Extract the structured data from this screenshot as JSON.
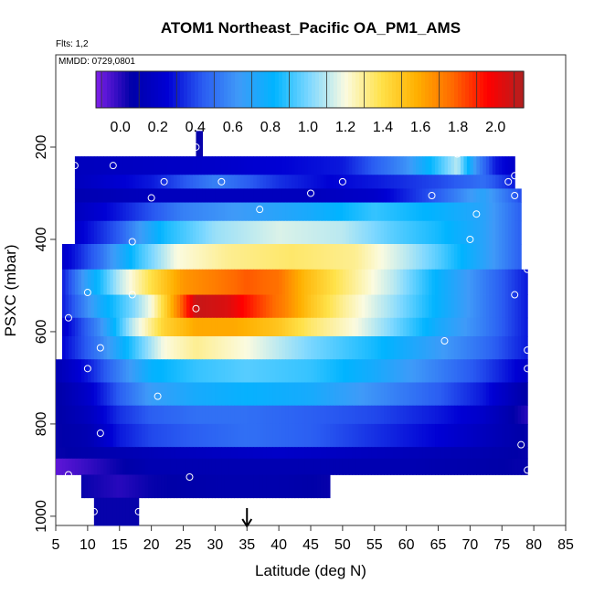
{
  "chart_data": {
    "type": "heatmap",
    "title": "ATOM1 Northeast_Pacific OA_PM1_AMS",
    "flights_label": "Flts: 1,2",
    "date_label": "MMDD: 0729,0801",
    "xlabel": "Latitude (deg N)",
    "ylabel": "PSXC (mbar)",
    "xlim": [
      5,
      85
    ],
    "ylim": [
      1020,
      0
    ],
    "x_ticks": [
      "5",
      "10",
      "15",
      "20",
      "25",
      "30",
      "35",
      "40",
      "45",
      "50",
      "55",
      "60",
      "65",
      "70",
      "75",
      "80",
      "85"
    ],
    "y_ticks": [
      "200",
      "400",
      "600",
      "800",
      "1000"
    ],
    "y_tick_values": [
      200,
      400,
      600,
      800,
      1000
    ],
    "colorbar": {
      "range": [
        -0.13,
        2.15
      ],
      "ticks": [
        "0.0",
        "0.2",
        "0.4",
        "0.6",
        "0.8",
        "1.0",
        "1.2",
        "1.4",
        "1.6",
        "1.8",
        "2.0"
      ],
      "tick_values": [
        0.0,
        0.2,
        0.4,
        0.6,
        0.8,
        1.0,
        1.2,
        1.4,
        1.6,
        1.8,
        2.0
      ],
      "colors": [
        "#7f1fe8",
        "#0000a8",
        "#0000d4",
        "#2a5cf2",
        "#3f9af8",
        "#00b4ff",
        "#7fd8ff",
        "#fbfbe0",
        "#ffe24a",
        "#ffb000",
        "#ff6a00",
        "#ff0000",
        "#b22020"
      ]
    },
    "arrow_latitude": 35,
    "layers": [
      {
        "p_top": 165,
        "p_bot": 220,
        "lat_start": 27,
        "lat_end": 28,
        "profile": [
          [
            27,
            0.05
          ],
          [
            28,
            0.05
          ]
        ]
      },
      {
        "p_top": 220,
        "p_bot": 260,
        "lat_start": 8,
        "lat_end": 77,
        "profile": [
          [
            8,
            0.15
          ],
          [
            30,
            0.2
          ],
          [
            50,
            0.3
          ],
          [
            60,
            0.6
          ],
          [
            65,
            0.9
          ],
          [
            68,
            1.1
          ],
          [
            71,
            0.6
          ],
          [
            74,
            0.3
          ],
          [
            77,
            0.2
          ]
        ]
      },
      {
        "p_top": 260,
        "p_bot": 290,
        "lat_start": 8,
        "lat_end": 77,
        "profile": [
          [
            8,
            0.15
          ],
          [
            20,
            0.3
          ],
          [
            30,
            0.55
          ],
          [
            40,
            0.35
          ],
          [
            48,
            0.25
          ],
          [
            55,
            0.3
          ],
          [
            65,
            0.4
          ],
          [
            72,
            0.5
          ],
          [
            77,
            0.3
          ]
        ]
      },
      {
        "p_top": 290,
        "p_bot": 320,
        "lat_start": 8,
        "lat_end": 78,
        "profile": [
          [
            8,
            0.1
          ],
          [
            20,
            0.15
          ],
          [
            30,
            0.15
          ],
          [
            45,
            0.15
          ],
          [
            55,
            0.2
          ],
          [
            65,
            0.45
          ],
          [
            72,
            0.7
          ],
          [
            78,
            0.4
          ]
        ]
      },
      {
        "p_top": 320,
        "p_bot": 360,
        "lat_start": 8,
        "lat_end": 78,
        "profile": [
          [
            8,
            0.15
          ],
          [
            15,
            0.3
          ],
          [
            25,
            0.55
          ],
          [
            35,
            0.65
          ],
          [
            45,
            0.75
          ],
          [
            55,
            0.9
          ],
          [
            65,
            0.8
          ],
          [
            72,
            0.7
          ],
          [
            78,
            0.45
          ]
        ]
      },
      {
        "p_top": 360,
        "p_bot": 410,
        "lat_start": 8,
        "lat_end": 78,
        "profile": [
          [
            8,
            0.2
          ],
          [
            15,
            0.45
          ],
          [
            22,
            0.85
          ],
          [
            30,
            1.05
          ],
          [
            40,
            1.15
          ],
          [
            50,
            1.1
          ],
          [
            58,
            0.95
          ],
          [
            65,
            0.85
          ],
          [
            72,
            0.7
          ],
          [
            78,
            0.45
          ]
        ]
      },
      {
        "p_top": 410,
        "p_bot": 465,
        "lat_start": 6,
        "lat_end": 78,
        "profile": [
          [
            6,
            0.2
          ],
          [
            12,
            0.5
          ],
          [
            18,
            0.9
          ],
          [
            24,
            1.2
          ],
          [
            32,
            1.3
          ],
          [
            42,
            1.35
          ],
          [
            52,
            1.3
          ],
          [
            60,
            1.1
          ],
          [
            65,
            0.95
          ],
          [
            72,
            0.7
          ],
          [
            78,
            0.45
          ]
        ]
      },
      {
        "p_top": 465,
        "p_bot": 520,
        "lat_start": 6,
        "lat_end": 79,
        "profile": [
          [
            6,
            0.3
          ],
          [
            10,
            0.7
          ],
          [
            15,
            1.1
          ],
          [
            20,
            1.4
          ],
          [
            25,
            1.65
          ],
          [
            30,
            1.72
          ],
          [
            35,
            1.8
          ],
          [
            40,
            1.75
          ],
          [
            44,
            1.55
          ],
          [
            50,
            1.35
          ],
          [
            58,
            1.1
          ],
          [
            65,
            0.8
          ],
          [
            72,
            0.55
          ],
          [
            79,
            0.3
          ]
        ]
      },
      {
        "p_top": 520,
        "p_bot": 570,
        "lat_start": 6,
        "lat_end": 79,
        "profile": [
          [
            6,
            0.3
          ],
          [
            12,
            0.75
          ],
          [
            17,
            1.0
          ],
          [
            20,
            1.2
          ],
          [
            23,
            1.55
          ],
          [
            27,
            2.1
          ],
          [
            32,
            2.05
          ],
          [
            37,
            1.85
          ],
          [
            41,
            1.7
          ],
          [
            45,
            1.5
          ],
          [
            50,
            1.3
          ],
          [
            58,
            1.05
          ],
          [
            65,
            0.8
          ],
          [
            72,
            0.55
          ],
          [
            79,
            0.3
          ]
        ]
      },
      {
        "p_top": 570,
        "p_bot": 610,
        "lat_start": 6,
        "lat_end": 79,
        "profile": [
          [
            6,
            0.2
          ],
          [
            12,
            0.6
          ],
          [
            17,
            1.1
          ],
          [
            22,
            1.45
          ],
          [
            27,
            1.6
          ],
          [
            33,
            1.6
          ],
          [
            40,
            1.5
          ],
          [
            45,
            1.35
          ],
          [
            52,
            1.2
          ],
          [
            58,
            1.0
          ],
          [
            65,
            0.75
          ],
          [
            72,
            0.55
          ],
          [
            79,
            0.3
          ]
        ]
      },
      {
        "p_top": 610,
        "p_bot": 660,
        "lat_start": 6,
        "lat_end": 79,
        "profile": [
          [
            6,
            0.25
          ],
          [
            12,
            0.55
          ],
          [
            18,
            0.95
          ],
          [
            22,
            1.2
          ],
          [
            27,
            1.3
          ],
          [
            35,
            1.2
          ],
          [
            45,
            1.0
          ],
          [
            55,
            0.85
          ],
          [
            65,
            0.65
          ],
          [
            72,
            0.5
          ],
          [
            79,
            0.3
          ]
        ]
      },
      {
        "p_top": 660,
        "p_bot": 710,
        "lat_start": 5,
        "lat_end": 79,
        "profile": [
          [
            5,
            0.1
          ],
          [
            10,
            0.3
          ],
          [
            15,
            0.55
          ],
          [
            20,
            0.8
          ],
          [
            27,
            0.9
          ],
          [
            35,
            0.95
          ],
          [
            45,
            0.9
          ],
          [
            55,
            0.75
          ],
          [
            65,
            0.55
          ],
          [
            72,
            0.4
          ],
          [
            79,
            0.2
          ]
        ]
      },
      {
        "p_top": 710,
        "p_bot": 760,
        "lat_start": 5,
        "lat_end": 79,
        "profile": [
          [
            5,
            0.05
          ],
          [
            10,
            0.2
          ],
          [
            15,
            0.45
          ],
          [
            20,
            0.65
          ],
          [
            27,
            0.75
          ],
          [
            35,
            0.8
          ],
          [
            45,
            0.75
          ],
          [
            55,
            0.6
          ],
          [
            65,
            0.45
          ],
          [
            72,
            0.3
          ],
          [
            79,
            0.05
          ]
        ]
      },
      {
        "p_top": 760,
        "p_bot": 800,
        "lat_start": 5,
        "lat_end": 79,
        "profile": [
          [
            5,
            0.05
          ],
          [
            10,
            0.15
          ],
          [
            15,
            0.35
          ],
          [
            20,
            0.45
          ],
          [
            27,
            0.5
          ],
          [
            35,
            0.5
          ],
          [
            45,
            0.45
          ],
          [
            55,
            0.4
          ],
          [
            65,
            0.3
          ],
          [
            72,
            0.2
          ],
          [
            79,
            0.0
          ]
        ]
      },
      {
        "p_top": 800,
        "p_bot": 850,
        "lat_start": 5,
        "lat_end": 79,
        "profile": [
          [
            5,
            0.05
          ],
          [
            10,
            0.1
          ],
          [
            15,
            0.3
          ],
          [
            20,
            0.4
          ],
          [
            27,
            0.45
          ],
          [
            35,
            0.5
          ],
          [
            45,
            0.45
          ],
          [
            55,
            0.35
          ],
          [
            65,
            0.25
          ],
          [
            72,
            0.15
          ],
          [
            79,
            0.05
          ]
        ]
      },
      {
        "p_top": 850,
        "p_bot": 875,
        "lat_start": 5,
        "lat_end": 79,
        "profile": [
          [
            5,
            0.05
          ],
          [
            15,
            0.1
          ],
          [
            25,
            0.15
          ],
          [
            40,
            0.2
          ],
          [
            55,
            0.15
          ],
          [
            70,
            0.1
          ],
          [
            79,
            0.05
          ]
        ]
      },
      {
        "p_top": 875,
        "p_bot": 910,
        "lat_start": 5,
        "lat_end": 79,
        "profile": [
          [
            5,
            -0.08
          ],
          [
            10,
            -0.02
          ],
          [
            15,
            0.05
          ],
          [
            20,
            0.1
          ],
          [
            30,
            0.1
          ],
          [
            45,
            0.1
          ],
          [
            60,
            0.1
          ],
          [
            79,
            0.05
          ]
        ]
      },
      {
        "p_top": 910,
        "p_bot": 960,
        "lat_start": 9,
        "lat_end": 48,
        "profile": [
          [
            9,
            0.05
          ],
          [
            15,
            0.0
          ],
          [
            20,
            0.05
          ],
          [
            30,
            0.08
          ],
          [
            40,
            0.08
          ],
          [
            48,
            0.05
          ]
        ]
      },
      {
        "p_top": 960,
        "p_bot": 1020,
        "lat_start": 11,
        "lat_end": 18,
        "profile": [
          [
            11,
            0.05
          ],
          [
            14,
            0.05
          ],
          [
            18,
            0.05
          ]
        ]
      }
    ],
    "sample_points": [
      [
        8,
        240
      ],
      [
        14,
        240
      ],
      [
        27,
        200
      ],
      [
        22,
        275
      ],
      [
        31,
        275
      ],
      [
        20,
        310
      ],
      [
        37,
        335
      ],
      [
        45,
        300
      ],
      [
        50,
        275
      ],
      [
        64,
        305
      ],
      [
        68,
        215
      ],
      [
        71,
        345
      ],
      [
        76,
        275
      ],
      [
        77,
        262
      ],
      [
        77,
        305
      ],
      [
        17,
        405
      ],
      [
        70,
        400
      ],
      [
        10,
        515
      ],
      [
        17,
        520
      ],
      [
        27,
        550
      ],
      [
        77,
        520
      ],
      [
        79,
        465
      ],
      [
        7,
        570
      ],
      [
        12,
        635
      ],
      [
        66,
        620
      ],
      [
        79,
        640
      ],
      [
        10,
        680
      ],
      [
        21,
        740
      ],
      [
        79,
        680
      ],
      [
        12,
        820
      ],
      [
        78,
        845
      ],
      [
        26,
        915
      ],
      [
        7,
        910
      ],
      [
        79,
        900
      ],
      [
        11,
        990
      ],
      [
        18,
        990
      ]
    ]
  }
}
